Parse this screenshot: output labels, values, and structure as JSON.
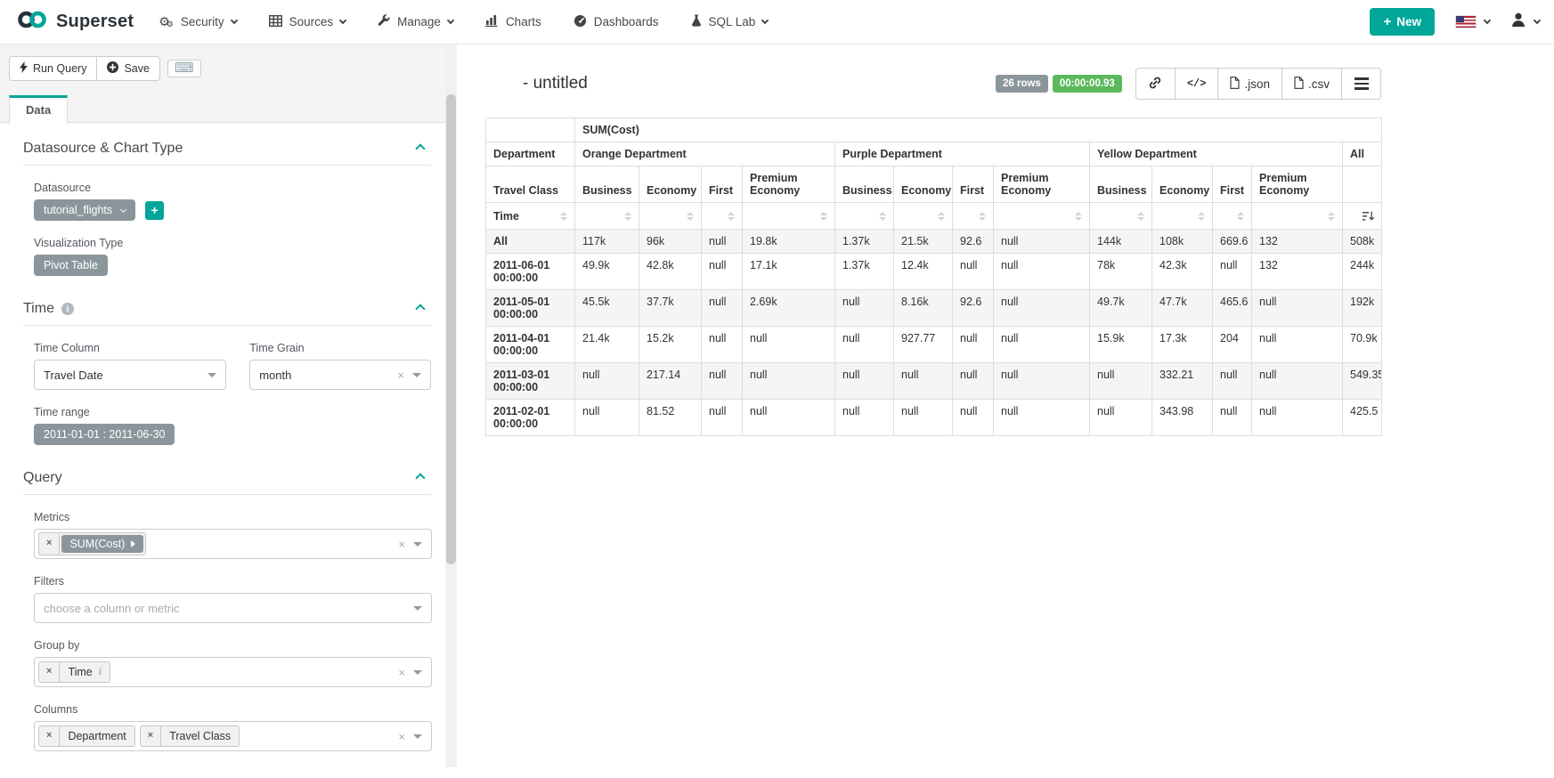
{
  "navbar": {
    "brand": "Superset",
    "items": [
      {
        "label": "Security",
        "icon": "gears-icon",
        "dropdown": true
      },
      {
        "label": "Sources",
        "icon": "table-icon",
        "dropdown": true
      },
      {
        "label": "Manage",
        "icon": "wrench-icon",
        "dropdown": true
      },
      {
        "label": "Charts",
        "icon": "bar-chart-icon",
        "dropdown": false
      },
      {
        "label": "Dashboards",
        "icon": "dashboard-icon",
        "dropdown": false
      },
      {
        "label": "SQL Lab",
        "icon": "flask-icon",
        "dropdown": true
      }
    ],
    "new_label": "New",
    "colors": {
      "accent": "#00A699"
    }
  },
  "toolbar": {
    "run_query": "Run Query",
    "save": "Save",
    "keyboard_icon": "keyboard-shortcuts"
  },
  "tabs": {
    "data": "Data"
  },
  "controls": {
    "datasource_section": {
      "title": "Datasource & Chart Type",
      "datasource_label": "Datasource",
      "datasource_value": "tutorial_flights",
      "viz_label": "Visualization Type",
      "viz_value": "Pivot Table"
    },
    "time_section": {
      "title": "Time",
      "time_column_label": "Time Column",
      "time_column_value": "Travel Date",
      "time_grain_label": "Time Grain",
      "time_grain_value": "month",
      "time_range_label": "Time range",
      "time_range_value": "2011-01-01 : 2011-06-30"
    },
    "query_section": {
      "title": "Query",
      "metrics_label": "Metrics",
      "metrics_tokens": [
        "SUM(Cost)"
      ],
      "filters_label": "Filters",
      "filters_placeholder": "choose a column or metric",
      "groupby_label": "Group by",
      "groupby_tokens": [
        "Time"
      ],
      "columns_label": "Columns",
      "columns_tokens": [
        "Department",
        "Travel Class"
      ]
    }
  },
  "chart": {
    "title": "- untitled",
    "rows_badge": "26 rows",
    "time_badge": "00:00:00.93",
    "json_label": ".json",
    "csv_label": ".csv"
  },
  "pivot": {
    "metric": "SUM(Cost)",
    "row_dim": "Department",
    "col_groups": [
      "Orange Department",
      "Purple Department",
      "Yellow Department"
    ],
    "all_label": "All",
    "class_dim": "Travel Class",
    "classes": [
      "Business",
      "Economy",
      "First",
      "Premium Economy"
    ],
    "time_dim": "Time",
    "rows": [
      {
        "time": "All",
        "values": [
          "117k",
          "96k",
          "null",
          "19.8k",
          "1.37k",
          "21.5k",
          "92.6",
          "null",
          "144k",
          "108k",
          "669.6",
          "132",
          "508k"
        ]
      },
      {
        "time": "2011-06-01 00:00:00",
        "values": [
          "49.9k",
          "42.8k",
          "null",
          "17.1k",
          "1.37k",
          "12.4k",
          "null",
          "null",
          "78k",
          "42.3k",
          "null",
          "132",
          "244k"
        ]
      },
      {
        "time": "2011-05-01 00:00:00",
        "values": [
          "45.5k",
          "37.7k",
          "null",
          "2.69k",
          "null",
          "8.16k",
          "92.6",
          "null",
          "49.7k",
          "47.7k",
          "465.6",
          "null",
          "192k"
        ]
      },
      {
        "time": "2011-04-01 00:00:00",
        "values": [
          "21.4k",
          "15.2k",
          "null",
          "null",
          "null",
          "927.77",
          "null",
          "null",
          "15.9k",
          "17.3k",
          "204",
          "null",
          "70.9k"
        ]
      },
      {
        "time": "2011-03-01 00:00:00",
        "values": [
          "null",
          "217.14",
          "null",
          "null",
          "null",
          "null",
          "null",
          "null",
          "null",
          "332.21",
          "null",
          "null",
          "549.35"
        ]
      },
      {
        "time": "2011-02-01 00:00:00",
        "values": [
          "null",
          "81.52",
          "null",
          "null",
          "null",
          "null",
          "null",
          "null",
          "null",
          "343.98",
          "null",
          "null",
          "425.5"
        ]
      }
    ]
  }
}
